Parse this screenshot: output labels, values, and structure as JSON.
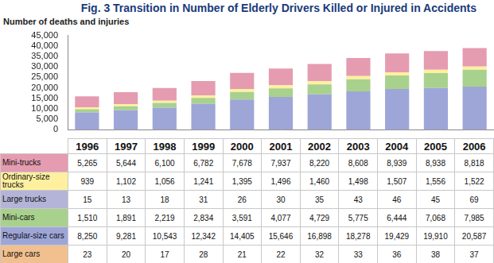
{
  "chart_data": {
    "type": "bar",
    "title": "Fig. 3  Transition in Number of Elderly Drivers Killed or Injured in Accidents",
    "ylabel": "Number of deaths and injuries",
    "categories": [
      "1996",
      "1997",
      "1998",
      "1999",
      "2000",
      "2001",
      "2002",
      "2003",
      "2004",
      "2005",
      "2006"
    ],
    "stacked": true,
    "grid": false,
    "ylim": [
      0,
      45000
    ],
    "yticks": [
      0,
      {
        "value": 5000,
        "label": "5,000"
      },
      {
        "value": 10000,
        "label": "10,000"
      },
      {
        "value": 15000,
        "label": "15,000"
      },
      {
        "value": 20000,
        "label": "20,000"
      },
      {
        "value": 25000,
        "label": "25,000"
      },
      {
        "value": 30000,
        "label": "30,000"
      },
      {
        "value": 35000,
        "label": "35,000"
      },
      {
        "value": 40000,
        "label": "40,000"
      },
      {
        "value": 45000,
        "label": "45,000"
      }
    ],
    "series": [
      {
        "name": "Mini-trucks",
        "color": "#e59cb0",
        "values": [
          5265,
          5644,
          6100,
          6782,
          7678,
          7937,
          8220,
          8608,
          8939,
          8938,
          8818
        ],
        "value_labels": [
          "5,265",
          "5,644",
          "6,100",
          "6,782",
          "7,678",
          "7,937",
          "8,220",
          "8,608",
          "8,939",
          "8,938",
          "8,818"
        ]
      },
      {
        "name": "Ordinary-size trucks",
        "color": "#fff0a0",
        "values": [
          939,
          1102,
          1056,
          1241,
          1395,
          1496,
          1460,
          1498,
          1507,
          1556,
          1522
        ],
        "value_labels": [
          "939",
          "1,102",
          "1,056",
          "1,241",
          "1,395",
          "1,496",
          "1,460",
          "1,498",
          "1,507",
          "1,556",
          "1,522"
        ]
      },
      {
        "name": "Large trucks",
        "color": "#b4b4d8",
        "values": [
          15,
          13,
          18,
          31,
          26,
          30,
          35,
          43,
          46,
          45,
          69
        ],
        "value_labels": [
          "15",
          "13",
          "18",
          "31",
          "26",
          "30",
          "35",
          "43",
          "46",
          "45",
          "69"
        ]
      },
      {
        "name": "Mini-cars",
        "color": "#a9d18e",
        "values": [
          1510,
          1891,
          2219,
          2834,
          3591,
          4077,
          4729,
          5775,
          6444,
          7068,
          7985
        ],
        "value_labels": [
          "1,510",
          "1,891",
          "2,219",
          "2,834",
          "3,591",
          "4,077",
          "4,729",
          "5,775",
          "6,444",
          "7,068",
          "7,985"
        ]
      },
      {
        "name": "Regular-size cars",
        "color": "#9ea6d8",
        "values": [
          8250,
          9281,
          10543,
          12342,
          14405,
          15646,
          16898,
          18278,
          19429,
          19910,
          20587
        ],
        "value_labels": [
          "8,250",
          "9,281",
          "10,543",
          "12,342",
          "14,405",
          "15,646",
          "16,898",
          "18,278",
          "19,429",
          "19,910",
          "20,587"
        ]
      },
      {
        "name": "Large cars",
        "color": "#f2c08e",
        "values": [
          23,
          20,
          17,
          28,
          21,
          22,
          32,
          33,
          36,
          38,
          37
        ],
        "value_labels": [
          "23",
          "20",
          "17",
          "28",
          "21",
          "22",
          "32",
          "33",
          "36",
          "38",
          "37"
        ]
      }
    ]
  }
}
